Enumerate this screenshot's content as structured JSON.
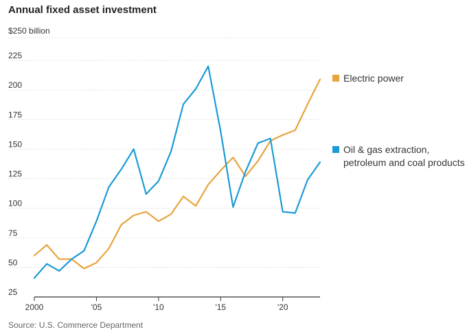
{
  "chart_data": {
    "type": "line",
    "title": "Annual fixed asset investment",
    "unit_label": "$250 billion",
    "source": "Source: U.S. Commerce Department",
    "x": [
      2000,
      2001,
      2002,
      2003,
      2004,
      2005,
      2006,
      2007,
      2008,
      2009,
      2010,
      2011,
      2012,
      2013,
      2014,
      2015,
      2016,
      2017,
      2018,
      2019,
      2020,
      2021,
      2022,
      2023
    ],
    "xlim": [
      2000,
      2023
    ],
    "ylim": [
      25,
      250
    ],
    "yticks": [
      25,
      50,
      75,
      100,
      125,
      150,
      175,
      200,
      225
    ],
    "ytick_labels": [
      "25",
      "50",
      "75",
      "100",
      "125",
      "150",
      "175",
      "200",
      "225"
    ],
    "xticks": [
      2000,
      2005,
      2010,
      2015,
      2020
    ],
    "xtick_labels": [
      "2000",
      "'05",
      "'10",
      "'15",
      "'20"
    ],
    "grid": true,
    "series": [
      {
        "name": "Electric power",
        "legend": [
          "Electric power"
        ],
        "color": "#e8a33d",
        "values": [
          60,
          69,
          57,
          57,
          49,
          54,
          66,
          86,
          94,
          97,
          89,
          95,
          110,
          102,
          120,
          132,
          143,
          127,
          140,
          157,
          162,
          166,
          188,
          209
        ]
      },
      {
        "name": "Oil & gas extraction, petroleum and coal products",
        "legend": [
          "Oil & gas extraction,",
          "petroleum and coal products"
        ],
        "color": "#1c9ad6",
        "values": [
          41,
          53,
          47,
          57,
          64,
          89,
          118,
          133,
          150,
          112,
          123,
          148,
          188,
          201,
          220,
          165,
          101,
          131,
          155,
          159,
          97,
          96,
          124,
          139
        ]
      }
    ]
  }
}
